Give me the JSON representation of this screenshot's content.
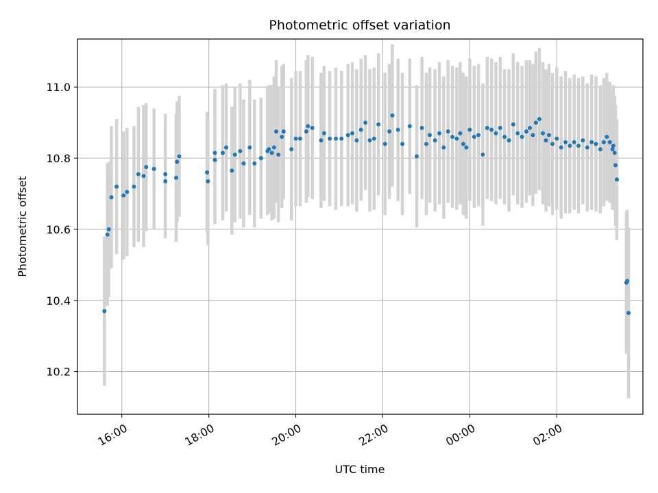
{
  "chart_data": {
    "type": "scatter",
    "title": "Photometric offset variation",
    "xlabel": "UTC time",
    "ylabel": "Photometric offset",
    "x_axis_kind": "time",
    "x_tick_labels": [
      "16:00",
      "18:00",
      "20:00",
      "22:00",
      "00:00",
      "02:00"
    ],
    "x_tick_values_hours": [
      16,
      18,
      20,
      22,
      24,
      26
    ],
    "xlim_hours": [
      14.98,
      27.98
    ],
    "y_ticks": [
      10.2,
      10.4,
      10.6,
      10.8,
      11.0
    ],
    "ylim": [
      10.08,
      11.135
    ],
    "grid": true,
    "colors": {
      "marker": "#1f77b4",
      "errorbar": "#d3d3d3",
      "grid": "#b0b0b0"
    },
    "series": [
      {
        "x_hours": [
          15.6,
          15.67,
          15.7,
          15.76,
          15.88,
          16.04,
          16.12,
          16.28,
          16.38,
          16.5,
          16.56,
          16.74,
          17.0,
          17.0,
          17.25,
          17.27,
          17.32,
          17.96,
          17.98,
          18.14,
          18.14,
          18.32,
          18.4,
          18.53,
          18.6,
          18.72,
          18.8,
          18.94,
          19.05,
          19.2,
          19.35,
          19.38,
          19.45,
          19.5,
          19.55,
          19.6,
          19.68,
          19.72,
          19.9,
          20.0,
          20.1,
          20.24,
          20.28,
          20.38,
          20.58,
          20.65,
          20.78,
          20.92,
          21.05,
          21.2,
          21.3,
          21.4,
          21.5,
          21.6,
          21.7,
          21.8,
          21.9,
          22.05,
          22.15,
          22.22,
          22.35,
          22.45,
          22.62,
          22.78,
          22.9,
          23.0,
          23.08,
          23.2,
          23.3,
          23.4,
          23.5,
          23.6,
          23.7,
          23.78,
          23.85,
          23.92,
          24.0,
          24.1,
          24.2,
          24.3,
          24.4,
          24.5,
          24.6,
          24.7,
          24.8,
          24.9,
          25.0,
          25.1,
          25.2,
          25.3,
          25.38,
          25.45,
          25.52,
          25.6,
          25.68,
          25.75,
          25.82,
          25.9,
          26.0,
          26.1,
          26.2,
          26.3,
          26.4,
          26.5,
          26.6,
          26.7,
          26.8,
          26.9,
          27.0,
          27.08,
          27.15,
          27.22,
          27.28,
          27.3,
          27.33,
          27.35,
          27.38,
          27.6,
          27.62,
          27.65
        ],
        "y": [
          10.37,
          10.585,
          10.6,
          10.69,
          10.72,
          10.695,
          10.705,
          10.72,
          10.755,
          10.75,
          10.775,
          10.77,
          10.755,
          10.735,
          10.745,
          10.79,
          10.805,
          10.76,
          10.735,
          10.815,
          10.795,
          10.815,
          10.83,
          10.765,
          10.81,
          10.82,
          10.785,
          10.83,
          10.785,
          10.8,
          10.82,
          10.825,
          10.815,
          10.83,
          10.875,
          10.81,
          10.86,
          10.875,
          10.825,
          10.855,
          10.855,
          10.875,
          10.89,
          10.885,
          10.85,
          10.87,
          10.855,
          10.855,
          10.855,
          10.865,
          10.87,
          10.85,
          10.88,
          10.9,
          10.85,
          10.855,
          10.895,
          10.84,
          10.875,
          10.92,
          10.88,
          10.84,
          10.89,
          10.805,
          10.885,
          10.84,
          10.865,
          10.85,
          10.87,
          10.83,
          10.875,
          10.86,
          10.855,
          10.87,
          10.84,
          10.83,
          10.88,
          10.86,
          10.865,
          10.81,
          10.885,
          10.88,
          10.87,
          10.885,
          10.86,
          10.85,
          10.895,
          10.87,
          10.86,
          10.875,
          10.885,
          10.865,
          10.9,
          10.91,
          10.87,
          10.85,
          10.865,
          10.84,
          10.855,
          10.83,
          10.845,
          10.835,
          10.845,
          10.835,
          10.85,
          10.83,
          10.845,
          10.84,
          10.825,
          10.845,
          10.86,
          10.845,
          10.825,
          10.835,
          10.815,
          10.78,
          10.74,
          10.45,
          10.455,
          10.365
        ],
        "yerr": [
          0.21,
          0.2,
          0.19,
          0.2,
          0.19,
          0.18,
          0.18,
          0.17,
          0.19,
          0.2,
          0.18,
          0.17,
          0.17,
          0.16,
          0.18,
          0.17,
          0.17,
          0.17,
          0.18,
          0.18,
          0.18,
          0.19,
          0.18,
          0.18,
          0.19,
          0.19,
          0.18,
          0.19,
          0.18,
          0.17,
          0.18,
          0.18,
          0.19,
          0.2,
          0.2,
          0.19,
          0.2,
          0.19,
          0.2,
          0.19,
          0.19,
          0.2,
          0.2,
          0.2,
          0.19,
          0.19,
          0.19,
          0.2,
          0.19,
          0.2,
          0.2,
          0.2,
          0.2,
          0.19,
          0.2,
          0.2,
          0.2,
          0.2,
          0.19,
          0.2,
          0.2,
          0.2,
          0.19,
          0.2,
          0.2,
          0.2,
          0.19,
          0.2,
          0.2,
          0.2,
          0.2,
          0.2,
          0.2,
          0.2,
          0.2,
          0.2,
          0.2,
          0.2,
          0.2,
          0.2,
          0.2,
          0.2,
          0.2,
          0.2,
          0.19,
          0.2,
          0.2,
          0.2,
          0.2,
          0.2,
          0.19,
          0.2,
          0.2,
          0.2,
          0.2,
          0.2,
          0.2,
          0.2,
          0.2,
          0.2,
          0.2,
          0.19,
          0.19,
          0.19,
          0.18,
          0.18,
          0.19,
          0.19,
          0.18,
          0.18,
          0.18,
          0.17,
          0.17,
          0.17,
          0.16,
          0.17,
          0.17,
          0.2,
          0.2,
          0.24
        ]
      }
    ]
  }
}
